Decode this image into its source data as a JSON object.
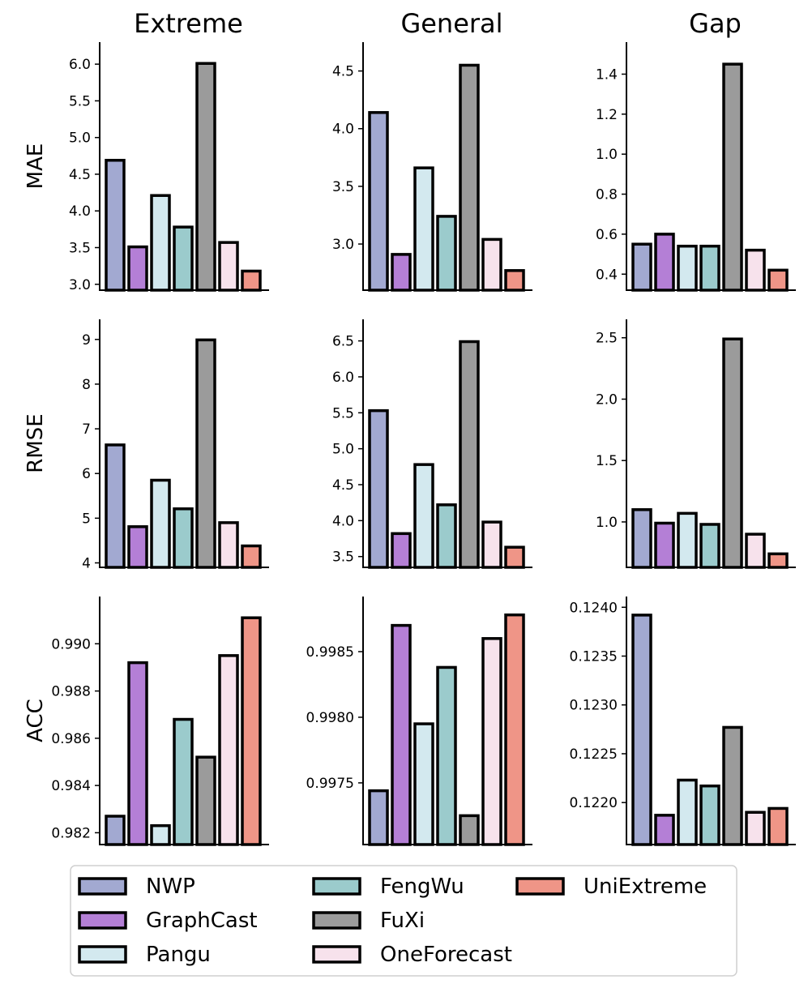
{
  "chart_data": {
    "type": "bar",
    "column_titles": [
      "Extreme",
      "General",
      "Gap"
    ],
    "row_labels": [
      "MAE",
      "RMSE",
      "ACC"
    ],
    "models": [
      "NWP",
      "GraphCast",
      "Pangu",
      "FengWu",
      "FuXi",
      "OneForecast",
      "UniExtreme"
    ],
    "colors": {
      "NWP": "#a2a9d1",
      "GraphCast": "#b47fd6",
      "Pangu": "#d3e9ef",
      "FengWu": "#9bcbcc",
      "FuXi": "#9b9b9b",
      "OneForecast": "#f7e2ec",
      "UniExtreme": "#ef9587"
    },
    "legend_position": "bottom",
    "panels": [
      {
        "row": "MAE",
        "column": "Extreme",
        "ylim": [
          2.92,
          6.3
        ],
        "ticks": [
          3.0,
          3.5,
          4.0,
          4.5,
          5.0,
          5.5,
          6.0
        ],
        "tick_labels": [
          "3.0",
          "3.5",
          "4.0",
          "4.5",
          "5.0",
          "5.5",
          "6.0"
        ],
        "values": [
          4.69,
          3.51,
          4.21,
          3.78,
          6.01,
          3.57,
          3.18
        ]
      },
      {
        "row": "MAE",
        "column": "General",
        "ylim": [
          2.6,
          4.75
        ],
        "ticks": [
          3.0,
          3.5,
          4.0,
          4.5
        ],
        "tick_labels": [
          "3.0",
          "3.5",
          "4.0",
          "4.5"
        ],
        "values": [
          4.14,
          2.91,
          3.66,
          3.24,
          4.55,
          3.04,
          2.77
        ]
      },
      {
        "row": "MAE",
        "column": "Gap",
        "ylim": [
          0.32,
          1.56
        ],
        "ticks": [
          0.4,
          0.6,
          0.8,
          1.0,
          1.2,
          1.4
        ],
        "tick_labels": [
          "0.4",
          "0.6",
          "0.8",
          "1.0",
          "1.2",
          "1.4"
        ],
        "values": [
          0.55,
          0.6,
          0.54,
          0.54,
          1.45,
          0.52,
          0.42
        ]
      },
      {
        "row": "RMSE",
        "column": "Extreme",
        "ylim": [
          3.9,
          9.45
        ],
        "ticks": [
          4,
          5,
          6,
          7,
          8,
          9
        ],
        "tick_labels": [
          "4",
          "5",
          "6",
          "7",
          "8",
          "9"
        ],
        "values": [
          6.64,
          4.81,
          5.85,
          5.21,
          8.99,
          4.9,
          4.38
        ]
      },
      {
        "row": "RMSE",
        "column": "General",
        "ylim": [
          3.35,
          6.8
        ],
        "ticks": [
          3.5,
          4.0,
          4.5,
          5.0,
          5.5,
          6.0,
          6.5
        ],
        "tick_labels": [
          "3.5",
          "4.0",
          "4.5",
          "5.0",
          "5.5",
          "6.0",
          "6.5"
        ],
        "values": [
          5.53,
          3.82,
          4.78,
          4.22,
          6.49,
          3.98,
          3.63
        ]
      },
      {
        "row": "RMSE",
        "column": "Gap",
        "ylim": [
          0.63,
          2.65
        ],
        "ticks": [
          1.0,
          1.5,
          2.0,
          2.5
        ],
        "tick_labels": [
          "1.0",
          "1.5",
          "2.0",
          "2.5"
        ],
        "values": [
          1.1,
          0.99,
          1.07,
          0.98,
          2.49,
          0.9,
          0.74
        ]
      },
      {
        "row": "ACC",
        "column": "Extreme",
        "ylim": [
          0.9815,
          0.992
        ],
        "ticks": [
          0.982,
          0.984,
          0.986,
          0.988,
          0.99
        ],
        "tick_labels": [
          "0.982",
          "0.984",
          "0.986",
          "0.988",
          "0.990"
        ],
        "values": [
          0.9827,
          0.9892,
          0.9823,
          0.9868,
          0.9852,
          0.9895,
          0.9911
        ]
      },
      {
        "row": "ACC",
        "column": "General",
        "ylim": [
          0.99703,
          0.99892
        ],
        "ticks": [
          0.9975,
          0.998,
          0.9985
        ],
        "tick_labels": [
          "0.9975",
          "0.9980",
          "0.9985"
        ],
        "values": [
          0.99744,
          0.9987,
          0.99795,
          0.99838,
          0.99725,
          0.9986,
          0.99878
        ]
      },
      {
        "row": "ACC",
        "column": "Gap",
        "ylim": [
          0.12157,
          0.12411
        ],
        "ticks": [
          0.122,
          0.1225,
          0.123,
          0.1235,
          0.124
        ],
        "tick_labels": [
          "0.1220",
          "0.1225",
          "0.1230",
          "0.1235",
          "0.1240"
        ],
        "values": [
          0.12392,
          0.12187,
          0.12223,
          0.12217,
          0.12277,
          0.1219,
          0.12194
        ]
      }
    ]
  }
}
